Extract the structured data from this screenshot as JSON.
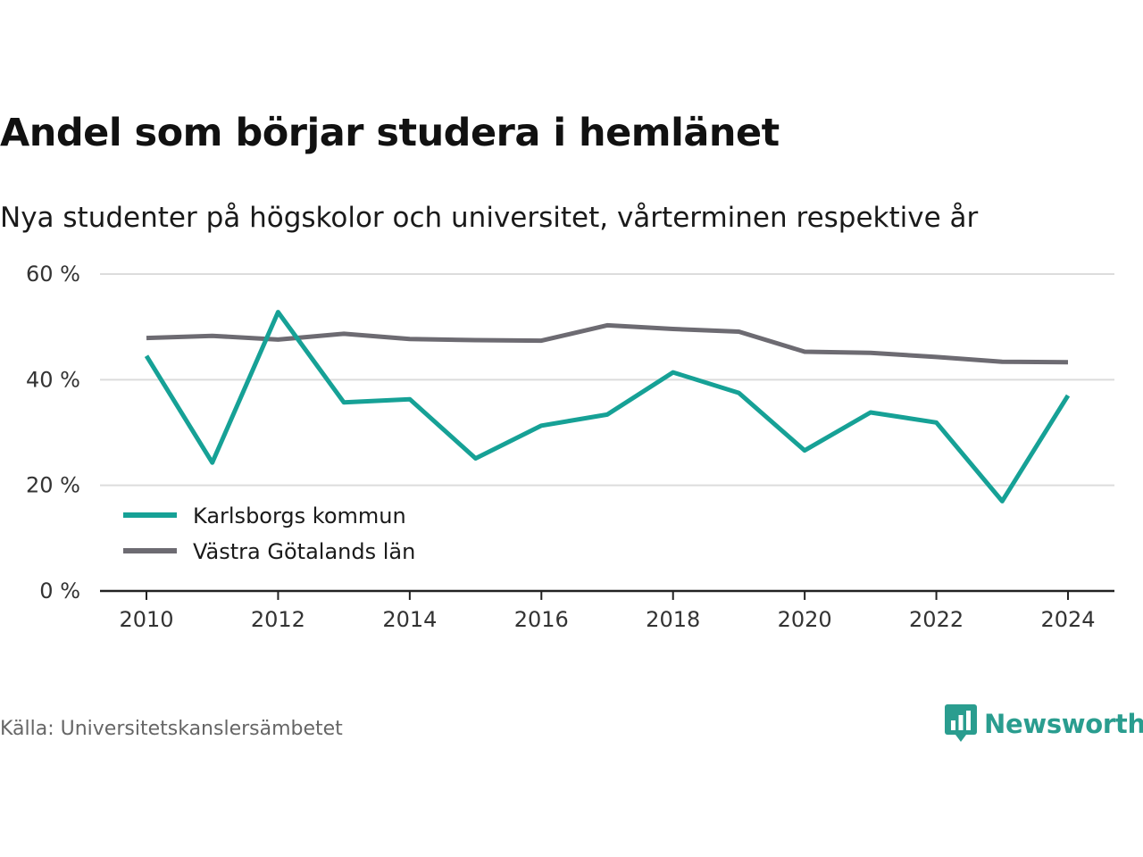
{
  "title": "Andel som börjar studera i hemlänet",
  "subtitle": "Nya studenter på högskolor och universitet, vårterminen respektive år",
  "source": "Källa: Universitetskanslersämbetet",
  "brand": {
    "name": "Newsworthy",
    "icon": "newsworthy-logo-icon",
    "color": "#2a9d8f"
  },
  "chart_data": {
    "type": "line",
    "x": [
      2010,
      2011,
      2012,
      2013,
      2014,
      2015,
      2016,
      2017,
      2018,
      2019,
      2020,
      2021,
      2022,
      2023,
      2024
    ],
    "series": [
      {
        "name": "Karlsborgs kommun",
        "color": "#16a196",
        "values": [
          44.5,
          24.3,
          52.8,
          35.7,
          36.3,
          25.1,
          31.3,
          33.4,
          41.4,
          37.5,
          26.6,
          33.8,
          31.9,
          17.0,
          37.0
        ]
      },
      {
        "name": "Västra Götalands län",
        "color": "#6d6b72",
        "values": [
          47.9,
          48.3,
          47.6,
          48.7,
          47.7,
          47.5,
          47.4,
          50.3,
          49.6,
          49.1,
          45.3,
          45.1,
          44.3,
          43.4,
          43.3
        ]
      }
    ],
    "yticks": [
      0,
      20,
      40,
      60
    ],
    "ytick_labels": [
      "0 %",
      "20 %",
      "40 %",
      "60 %"
    ],
    "xticks": [
      2010,
      2012,
      2014,
      2016,
      2018,
      2020,
      2022,
      2024
    ],
    "xtick_labels": [
      "2010",
      "2012",
      "2014",
      "2016",
      "2018",
      "2020",
      "2022",
      "2024"
    ],
    "ylim": [
      0,
      60
    ],
    "xlim": [
      2010,
      2024
    ],
    "grid": true,
    "legend_position": "bottom-left"
  }
}
